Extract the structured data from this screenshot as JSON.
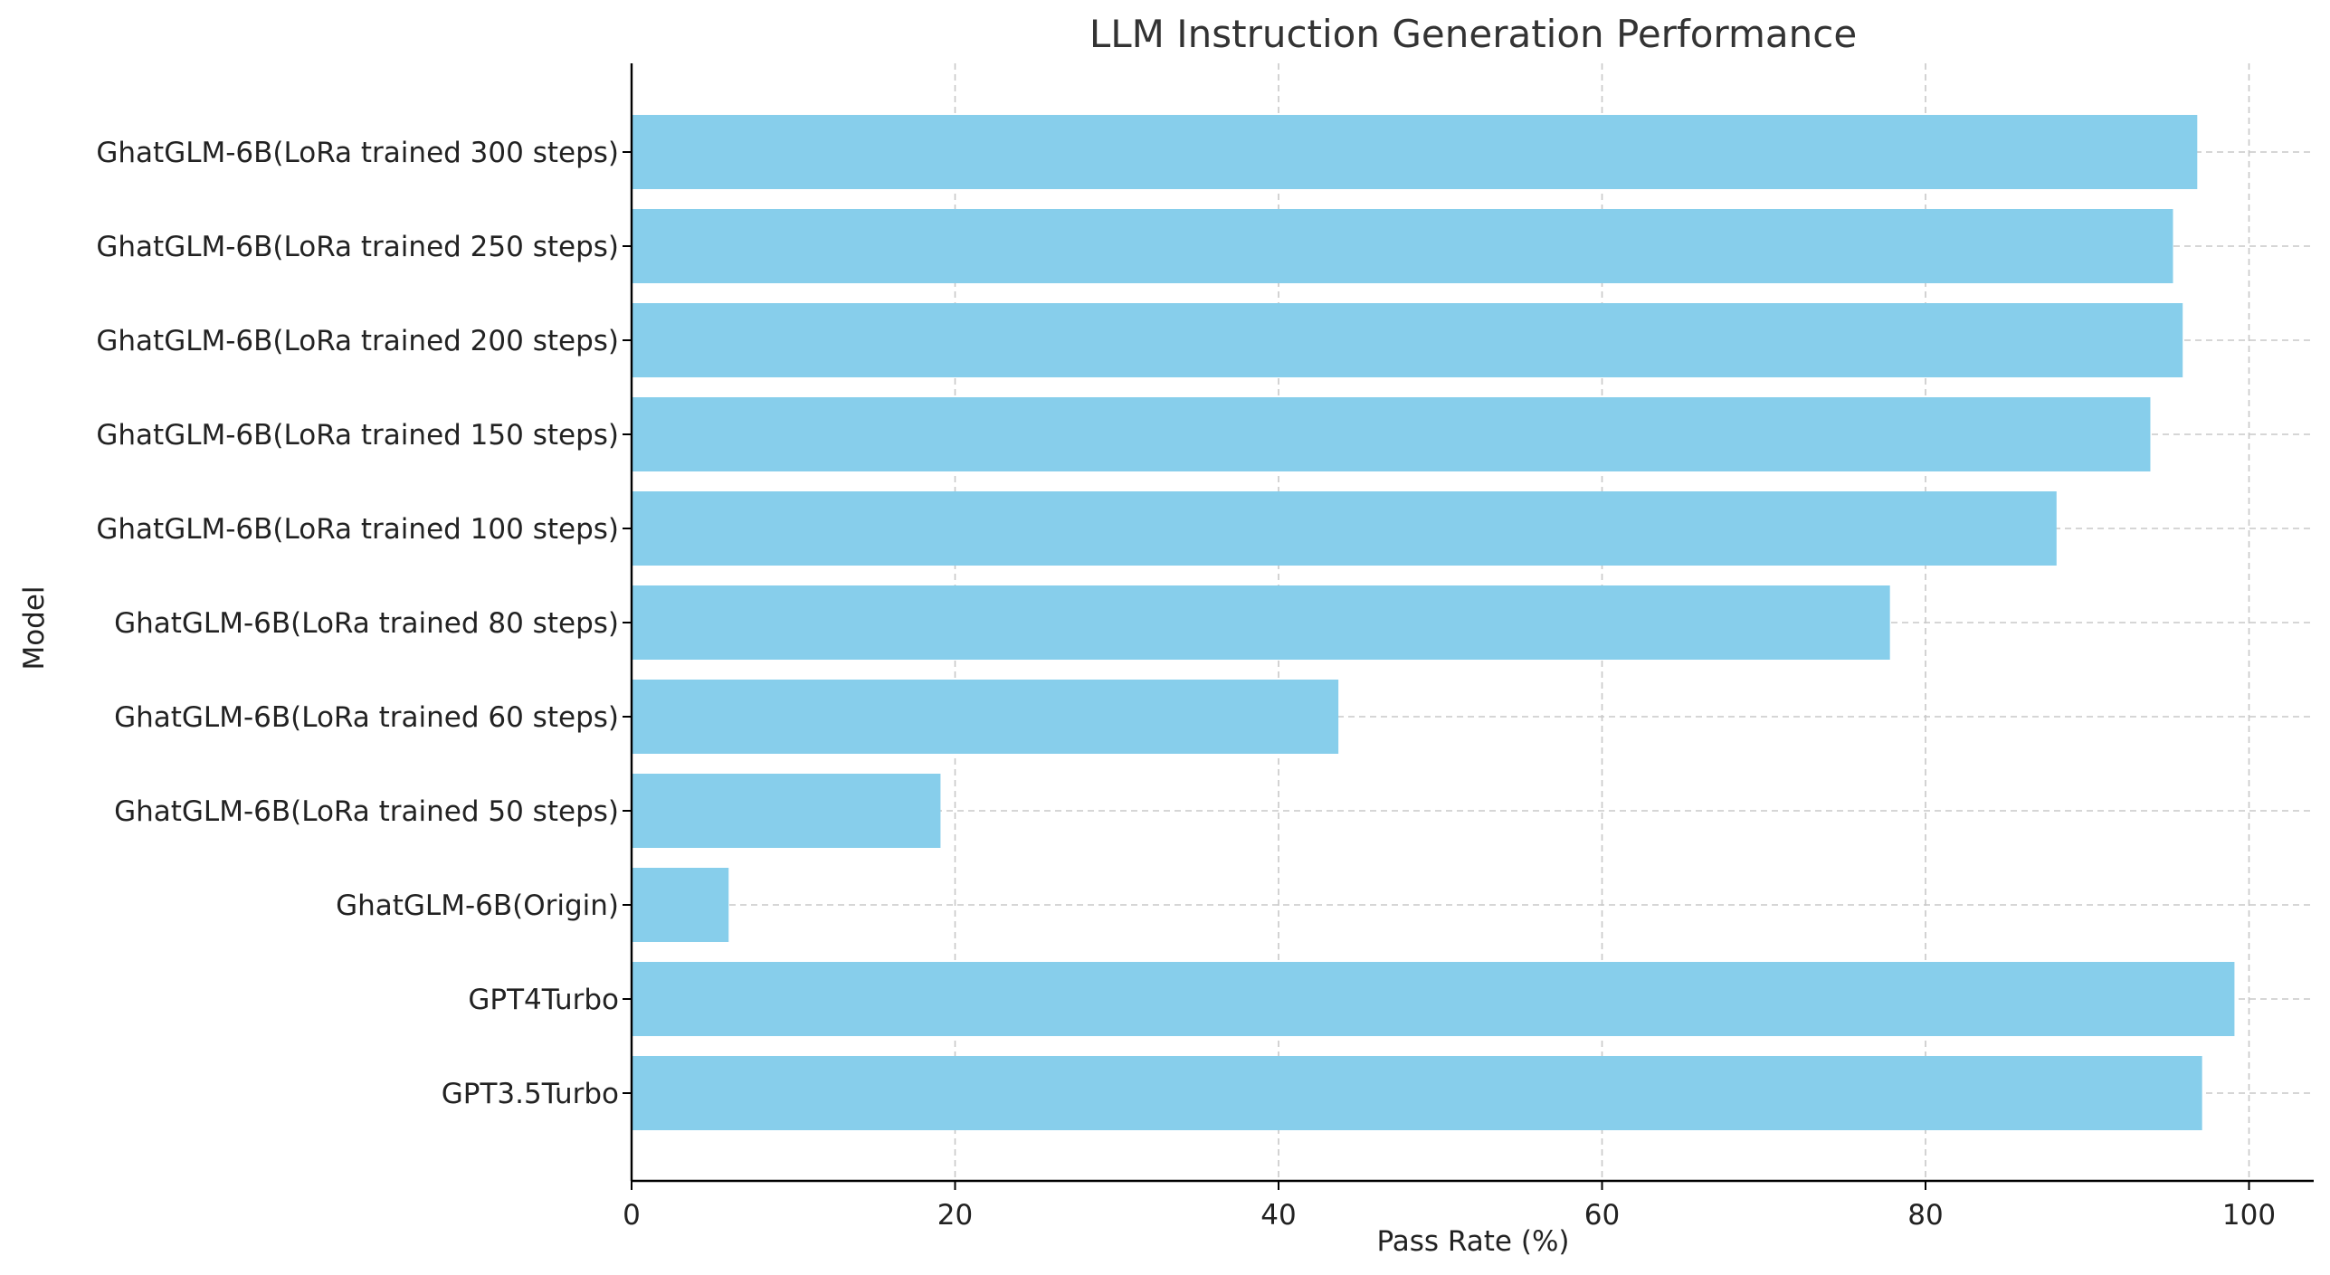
{
  "chart_data": {
    "type": "bar",
    "orientation": "horizontal",
    "title": "LLM Instruction Generation Performance",
    "xlabel": "Pass Rate (%)",
    "ylabel": "Model",
    "categories": [
      "GhatGLM-6B(LoRa trained 300 steps)",
      "GhatGLM-6B(LoRa trained 250 steps)",
      "GhatGLM-6B(LoRa trained 200 steps)",
      "GhatGLM-6B(LoRa trained 150 steps)",
      "GhatGLM-6B(LoRa trained 100 steps)",
      "GhatGLM-6B(LoRa trained 80 steps)",
      "GhatGLM-6B(LoRa trained 60 steps)",
      "GhatGLM-6B(LoRa trained 50 steps)",
      "GhatGLM-6B(Origin)",
      "GPT4Turbo",
      "GPT3.5Turbo"
    ],
    "values": [
      96.8,
      95.3,
      95.9,
      93.9,
      88.1,
      77.8,
      43.7,
      19.1,
      6.0,
      99.1,
      97.1
    ],
    "xlim": [
      0,
      104
    ],
    "xticks": [
      0,
      20,
      40,
      60,
      80,
      100
    ],
    "grid": true,
    "bar_color": "#87ceeb"
  }
}
